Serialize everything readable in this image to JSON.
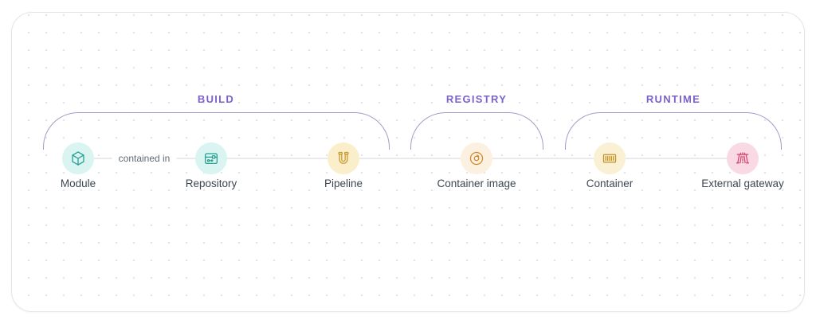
{
  "diagram": {
    "groups": [
      {
        "label": "BUILD"
      },
      {
        "label": "REGISTRY"
      },
      {
        "label": "RUNTIME"
      }
    ],
    "nodes": [
      {
        "label": "Module",
        "icon": "cube-icon",
        "icon_color": "#279e92",
        "circle_color": "#d9f4f1"
      },
      {
        "label": "Repository",
        "icon": "repository-icon",
        "icon_color": "#279e92",
        "circle_color": "#d9f4f1"
      },
      {
        "label": "Pipeline",
        "icon": "pipeline-icon",
        "icon_color": "#cb9a2c",
        "circle_color": "#faeecb"
      },
      {
        "label": "Container image",
        "icon": "disc-icon",
        "icon_color": "#d28a2e",
        "circle_color": "#fcf1e0"
      },
      {
        "label": "Container",
        "icon": "container-icon",
        "icon_color": "#c4901f",
        "circle_color": "#faf0d4"
      },
      {
        "label": "External gateway",
        "icon": "gateway-icon",
        "icon_color": "#d44a72",
        "circle_color": "#f9d9e3"
      }
    ],
    "edge_label": "contained in",
    "colors": {
      "section_label": "#7b62cc",
      "brace": "#a49bc8",
      "connector": "#eaeaee",
      "node_label": "#3d4752",
      "edge_label": "#5f6b74"
    }
  }
}
